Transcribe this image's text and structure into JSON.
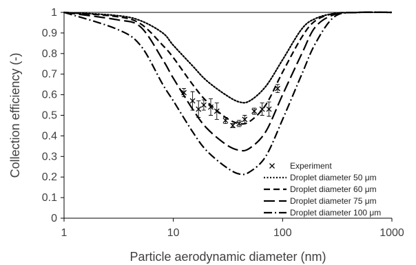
{
  "chart_data": {
    "type": "line",
    "xlabel": "Particle aerodynamic diameter (nm)",
    "ylabel": "Collection efficiency (-)",
    "x_scale": "log",
    "xlim": [
      1,
      1000
    ],
    "ylim": [
      0,
      1
    ],
    "x_ticks": [
      "1",
      "10",
      "100",
      "1000"
    ],
    "y_ticks": [
      "0",
      "0.1",
      "0.2",
      "0.3",
      "0.4",
      "0.5",
      "0.6",
      "0.7",
      "0.8",
      "0.9",
      "1"
    ],
    "grid": false,
    "legend_position": "bottom-right",
    "series": [
      {
        "name": "Droplet diameter 50 μm",
        "style": "dotted",
        "x": [
          1,
          3,
          5,
          8,
          10,
          15,
          20,
          30,
          40,
          50,
          70,
          100,
          150,
          200,
          300,
          500,
          1000
        ],
        "y": [
          1,
          0.985,
          0.96,
          0.9,
          0.84,
          0.74,
          0.67,
          0.6,
          0.565,
          0.57,
          0.64,
          0.77,
          0.92,
          0.97,
          0.995,
          1,
          1
        ]
      },
      {
        "name": "Droplet diameter 60 μm",
        "style": "dashed",
        "x": [
          1,
          3,
          5,
          8,
          10,
          15,
          20,
          30,
          40,
          50,
          70,
          100,
          150,
          200,
          300,
          500,
          1000
        ],
        "y": [
          1,
          0.98,
          0.945,
          0.84,
          0.78,
          0.65,
          0.57,
          0.49,
          0.46,
          0.47,
          0.55,
          0.71,
          0.88,
          0.96,
          0.995,
          1,
          1
        ]
      },
      {
        "name": "Droplet diameter 75 μm",
        "style": "long-dash",
        "x": [
          1,
          3,
          5,
          8,
          10,
          15,
          20,
          30,
          40,
          50,
          70,
          100,
          150,
          200,
          300,
          500,
          1000
        ],
        "y": [
          1,
          0.965,
          0.93,
          0.77,
          0.68,
          0.53,
          0.44,
          0.36,
          0.33,
          0.34,
          0.42,
          0.6,
          0.8,
          0.93,
          0.99,
          1,
          1
        ]
      },
      {
        "name": "Droplet diameter 100 μm",
        "style": "dash-dot",
        "x": [
          1,
          3,
          5,
          8,
          10,
          15,
          20,
          30,
          40,
          50,
          70,
          100,
          150,
          200,
          300,
          500,
          1000
        ],
        "y": [
          1,
          0.92,
          0.84,
          0.65,
          0.57,
          0.42,
          0.33,
          0.25,
          0.215,
          0.225,
          0.3,
          0.48,
          0.7,
          0.85,
          0.98,
          1,
          1
        ]
      },
      {
        "name": "Experiment",
        "style": "marker-x",
        "x": [
          12.5,
          15,
          17,
          19,
          22,
          25,
          30,
          35,
          40,
          45,
          55,
          65,
          75,
          90
        ],
        "y": [
          0.61,
          0.57,
          0.53,
          0.55,
          0.54,
          0.52,
          0.475,
          0.45,
          0.46,
          0.48,
          0.52,
          0.53,
          0.53,
          0.63
        ],
        "err": [
          0.02,
          0.045,
          0.04,
          0.025,
          0.04,
          0.04,
          0.015,
          0.01,
          0.015,
          0.02,
          0.015,
          0.03,
          0.035,
          0.02
        ]
      }
    ]
  }
}
